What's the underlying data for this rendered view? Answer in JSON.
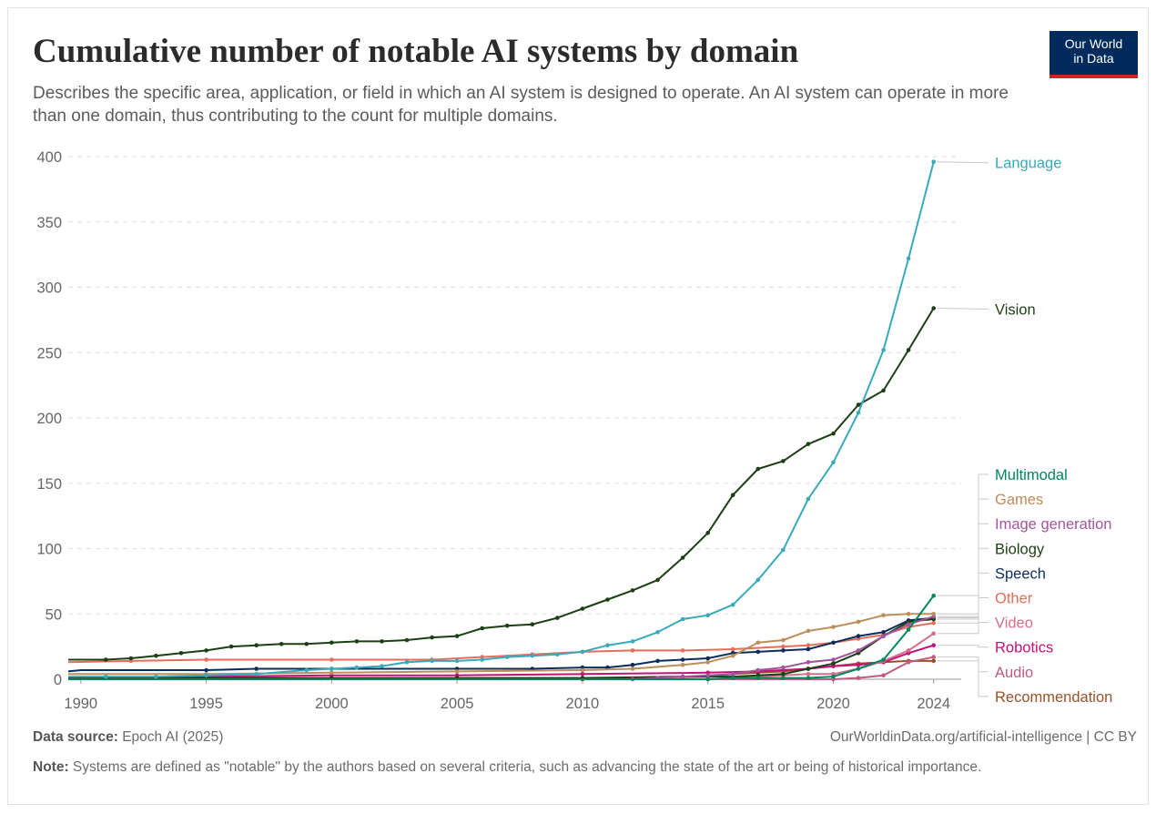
{
  "header": {
    "title": "Cumulative number of notable AI systems by domain",
    "subtitle": "Describes the specific area, application, or field in which an AI system is designed to operate. An AI system can operate in more than one domain, thus contributing to the count for multiple domains.",
    "logo_line1": "Our World",
    "logo_line2": "in Data"
  },
  "footer": {
    "source_label": "Data source:",
    "source_text": " Epoch AI (2025)",
    "url_text": "OurWorldinData.org/artificial-intelligence | CC BY",
    "note_label": "Note:",
    "note_text": " Systems are defined as \"notable\" by the authors based on several criteria, such as advancing the state of the art or being of historical importance."
  },
  "chart_data": {
    "type": "line",
    "title": "Cumulative number of notable AI systems by domain",
    "xlim": [
      1989.5,
      2025.1
    ],
    "ylim": [
      0,
      400
    ],
    "x_ticks": [
      1990,
      1995,
      2000,
      2005,
      2010,
      2015,
      2020,
      2024
    ],
    "y_ticks": [
      0,
      50,
      100,
      150,
      200,
      250,
      300,
      350,
      400
    ],
    "grid": "horizontal-dashed",
    "legend": "right-end labels",
    "series": [
      {
        "name": "Language",
        "color": "#38aaba",
        "points": [
          [
            1989.5,
            2
          ],
          [
            1991,
            2
          ],
          [
            1993,
            2
          ],
          [
            1995,
            3
          ],
          [
            1997,
            4
          ],
          [
            1999,
            7
          ],
          [
            2000,
            8
          ],
          [
            2001,
            9
          ],
          [
            2002,
            10
          ],
          [
            2003,
            13
          ],
          [
            2004,
            14
          ],
          [
            2005,
            14
          ],
          [
            2006,
            15
          ],
          [
            2007,
            17
          ],
          [
            2008,
            18
          ],
          [
            2009,
            19
          ],
          [
            2010,
            21
          ],
          [
            2011,
            26
          ],
          [
            2012,
            29
          ],
          [
            2013,
            36
          ],
          [
            2014,
            46
          ],
          [
            2015,
            49
          ],
          [
            2016,
            57
          ],
          [
            2017,
            76
          ],
          [
            2018,
            99
          ],
          [
            2019,
            138
          ],
          [
            2020,
            166
          ],
          [
            2021,
            204
          ],
          [
            2022,
            252
          ],
          [
            2023,
            322
          ],
          [
            2024,
            396
          ]
        ]
      },
      {
        "name": "Vision",
        "color": "#1c3f14",
        "points": [
          [
            1989.5,
            15
          ],
          [
            1990,
            15
          ],
          [
            1991,
            15
          ],
          [
            1992,
            16
          ],
          [
            1993,
            18
          ],
          [
            1994,
            20
          ],
          [
            1995,
            22
          ],
          [
            1996,
            25
          ],
          [
            1997,
            26
          ],
          [
            1998,
            27
          ],
          [
            1999,
            27
          ],
          [
            2000,
            28
          ],
          [
            2001,
            29
          ],
          [
            2002,
            29
          ],
          [
            2003,
            30
          ],
          [
            2004,
            32
          ],
          [
            2005,
            33
          ],
          [
            2006,
            39
          ],
          [
            2007,
            41
          ],
          [
            2008,
            42
          ],
          [
            2009,
            47
          ],
          [
            2010,
            54
          ],
          [
            2011,
            61
          ],
          [
            2012,
            68
          ],
          [
            2013,
            76
          ],
          [
            2014,
            93
          ],
          [
            2015,
            112
          ],
          [
            2016,
            141
          ],
          [
            2017,
            161
          ],
          [
            2018,
            167
          ],
          [
            2019,
            180
          ],
          [
            2020,
            188
          ],
          [
            2021,
            210
          ],
          [
            2022,
            221
          ],
          [
            2023,
            252
          ],
          [
            2024,
            284
          ]
        ]
      },
      {
        "name": "Multimodal",
        "color": "#00875e",
        "points": [
          [
            1989.5,
            0
          ],
          [
            2015,
            0
          ],
          [
            2016,
            1
          ],
          [
            2017,
            1
          ],
          [
            2018,
            1
          ],
          [
            2019,
            1
          ],
          [
            2020,
            2
          ],
          [
            2021,
            8
          ],
          [
            2022,
            15
          ],
          [
            2023,
            38
          ],
          [
            2024,
            64
          ]
        ]
      },
      {
        "name": "Games",
        "color": "#bc8e5a",
        "points": [
          [
            1989.5,
            4
          ],
          [
            1995,
            4
          ],
          [
            2000,
            5
          ],
          [
            2005,
            6
          ],
          [
            2010,
            7
          ],
          [
            2012,
            8
          ],
          [
            2014,
            11
          ],
          [
            2015,
            13
          ],
          [
            2016,
            18
          ],
          [
            2017,
            28
          ],
          [
            2018,
            30
          ],
          [
            2019,
            37
          ],
          [
            2020,
            40
          ],
          [
            2021,
            44
          ],
          [
            2022,
            49
          ],
          [
            2023,
            50
          ],
          [
            2024,
            50
          ]
        ]
      },
      {
        "name": "Image generation",
        "color": "#a2559c",
        "points": [
          [
            1989.5,
            0
          ],
          [
            2012,
            0
          ],
          [
            2013,
            1
          ],
          [
            2014,
            2
          ],
          [
            2015,
            3
          ],
          [
            2016,
            4
          ],
          [
            2017,
            7
          ],
          [
            2018,
            9
          ],
          [
            2019,
            13
          ],
          [
            2020,
            15
          ],
          [
            2021,
            22
          ],
          [
            2022,
            33
          ],
          [
            2023,
            42
          ],
          [
            2024,
            48
          ]
        ]
      },
      {
        "name": "Biology",
        "color": "#1c3f14",
        "points": [
          [
            1989.5,
            1
          ],
          [
            2000,
            1
          ],
          [
            2005,
            1
          ],
          [
            2010,
            1
          ],
          [
            2014,
            2
          ],
          [
            2016,
            2
          ],
          [
            2017,
            3
          ],
          [
            2018,
            4
          ],
          [
            2019,
            8
          ],
          [
            2020,
            12
          ],
          [
            2021,
            20
          ],
          [
            2022,
            33
          ],
          [
            2023,
            44
          ],
          [
            2024,
            46
          ]
        ]
      },
      {
        "name": "Speech",
        "color": "#0c2c5c",
        "points": [
          [
            1989.5,
            6
          ],
          [
            1990,
            7
          ],
          [
            1995,
            7
          ],
          [
            1997,
            8
          ],
          [
            2000,
            8
          ],
          [
            2005,
            8
          ],
          [
            2008,
            8
          ],
          [
            2010,
            9
          ],
          [
            2011,
            9
          ],
          [
            2012,
            11
          ],
          [
            2013,
            14
          ],
          [
            2014,
            15
          ],
          [
            2015,
            16
          ],
          [
            2016,
            20
          ],
          [
            2017,
            21
          ],
          [
            2018,
            22
          ],
          [
            2019,
            23
          ],
          [
            2020,
            28
          ],
          [
            2021,
            33
          ],
          [
            2022,
            36
          ],
          [
            2023,
            45
          ],
          [
            2024,
            47
          ]
        ]
      },
      {
        "name": "Other",
        "color": "#e56e5a",
        "points": [
          [
            1989.5,
            13
          ],
          [
            1992,
            14
          ],
          [
            1995,
            15
          ],
          [
            2000,
            15
          ],
          [
            2004,
            15
          ],
          [
            2006,
            17
          ],
          [
            2008,
            19
          ],
          [
            2010,
            21
          ],
          [
            2012,
            22
          ],
          [
            2014,
            22
          ],
          [
            2016,
            23
          ],
          [
            2018,
            25
          ],
          [
            2019,
            26
          ],
          [
            2020,
            28
          ],
          [
            2021,
            31
          ],
          [
            2022,
            34
          ],
          [
            2023,
            40
          ],
          [
            2024,
            43
          ]
        ]
      },
      {
        "name": "Video",
        "color": "#d66e8a",
        "points": [
          [
            1989.5,
            0
          ],
          [
            2015,
            0
          ],
          [
            2016,
            1
          ],
          [
            2017,
            2
          ],
          [
            2018,
            3
          ],
          [
            2019,
            4
          ],
          [
            2020,
            4
          ],
          [
            2021,
            8
          ],
          [
            2022,
            14
          ],
          [
            2023,
            22
          ],
          [
            2024,
            35
          ]
        ]
      },
      {
        "name": "Robotics",
        "color": "#c4117a",
        "points": [
          [
            1989.5,
            1
          ],
          [
            1995,
            2
          ],
          [
            2000,
            3
          ],
          [
            2005,
            3
          ],
          [
            2010,
            4
          ],
          [
            2015,
            5
          ],
          [
            2017,
            6
          ],
          [
            2019,
            8
          ],
          [
            2020,
            10
          ],
          [
            2021,
            11
          ],
          [
            2022,
            13
          ],
          [
            2023,
            20
          ],
          [
            2024,
            26
          ]
        ]
      },
      {
        "name": "Audio",
        "color": "#c05c7a",
        "points": [
          [
            1989.5,
            0
          ],
          [
            2020,
            0
          ],
          [
            2021,
            1
          ],
          [
            2022,
            3
          ],
          [
            2023,
            13
          ],
          [
            2024,
            17
          ]
        ]
      },
      {
        "name": "Recommendation",
        "color": "#9a5129",
        "points": [
          [
            1989.5,
            0
          ],
          [
            2010,
            0
          ],
          [
            2015,
            2
          ],
          [
            2016,
            4
          ],
          [
            2017,
            5
          ],
          [
            2018,
            6
          ],
          [
            2019,
            8
          ],
          [
            2020,
            10
          ],
          [
            2021,
            12
          ],
          [
            2022,
            13
          ],
          [
            2023,
            14
          ],
          [
            2024,
            14
          ]
        ]
      }
    ]
  }
}
